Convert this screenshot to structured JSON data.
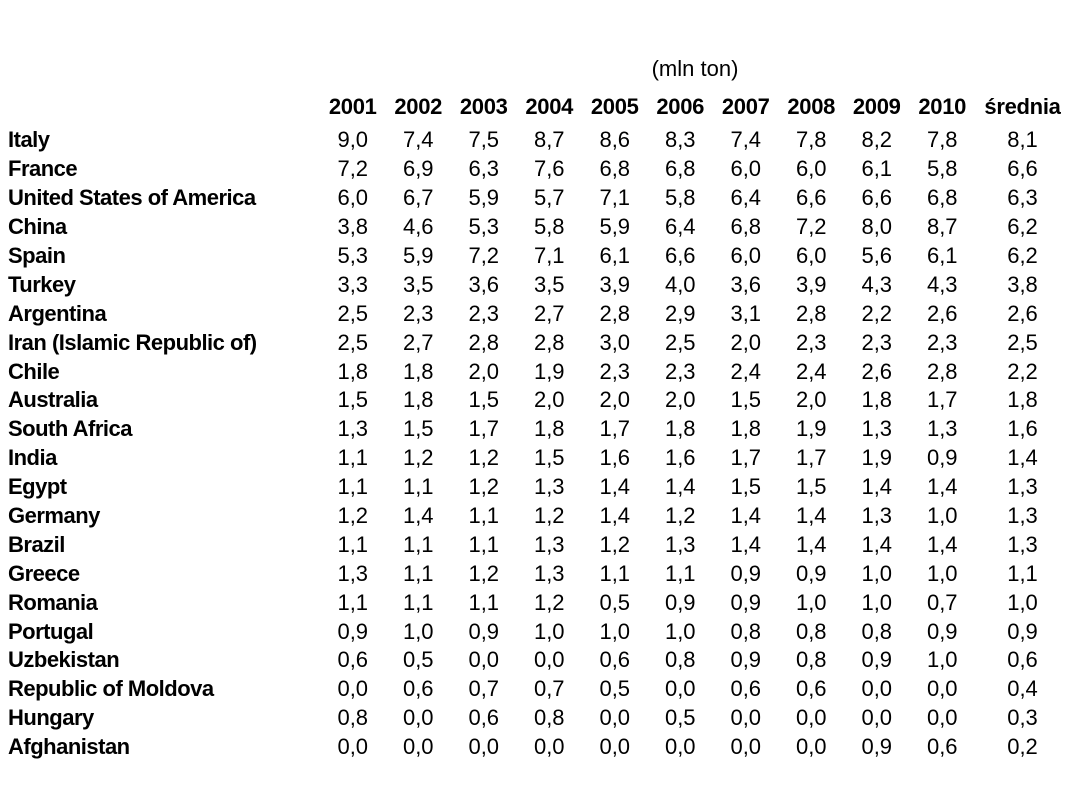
{
  "title": "(mln ton)",
  "chart_data": {
    "type": "table",
    "title": "(mln ton)",
    "unit": "mln ton",
    "decimal_separator": ",",
    "columns": [
      "2001",
      "2002",
      "2003",
      "2004",
      "2005",
      "2006",
      "2007",
      "2008",
      "2009",
      "2010",
      "średnia"
    ],
    "rows": [
      {
        "label": "Italy",
        "values": [
          9.0,
          7.4,
          7.5,
          8.7,
          8.6,
          8.3,
          7.4,
          7.8,
          8.2,
          7.8,
          8.1
        ]
      },
      {
        "label": "France",
        "values": [
          7.2,
          6.9,
          6.3,
          7.6,
          6.8,
          6.8,
          6.0,
          6.0,
          6.1,
          5.8,
          6.6
        ]
      },
      {
        "label": "United States of America",
        "values": [
          6.0,
          6.7,
          5.9,
          5.7,
          7.1,
          5.8,
          6.4,
          6.6,
          6.6,
          6.8,
          6.3
        ]
      },
      {
        "label": "China",
        "values": [
          3.8,
          4.6,
          5.3,
          5.8,
          5.9,
          6.4,
          6.8,
          7.2,
          8.0,
          8.7,
          6.2
        ]
      },
      {
        "label": "Spain",
        "values": [
          5.3,
          5.9,
          7.2,
          7.1,
          6.1,
          6.6,
          6.0,
          6.0,
          5.6,
          6.1,
          6.2
        ]
      },
      {
        "label": "Turkey",
        "values": [
          3.3,
          3.5,
          3.6,
          3.5,
          3.9,
          4.0,
          3.6,
          3.9,
          4.3,
          4.3,
          3.8
        ]
      },
      {
        "label": "Argentina",
        "values": [
          2.5,
          2.3,
          2.3,
          2.7,
          2.8,
          2.9,
          3.1,
          2.8,
          2.2,
          2.6,
          2.6
        ]
      },
      {
        "label": "Iran (Islamic Republic of)",
        "values": [
          2.5,
          2.7,
          2.8,
          2.8,
          3.0,
          2.5,
          2.0,
          2.3,
          2.3,
          2.3,
          2.5
        ]
      },
      {
        "label": "Chile",
        "values": [
          1.8,
          1.8,
          2.0,
          1.9,
          2.3,
          2.3,
          2.4,
          2.4,
          2.6,
          2.8,
          2.2
        ]
      },
      {
        "label": "Australia",
        "values": [
          1.5,
          1.8,
          1.5,
          2.0,
          2.0,
          2.0,
          1.5,
          2.0,
          1.8,
          1.7,
          1.8
        ]
      },
      {
        "label": "South Africa",
        "values": [
          1.3,
          1.5,
          1.7,
          1.8,
          1.7,
          1.8,
          1.8,
          1.9,
          1.3,
          1.3,
          1.6
        ]
      },
      {
        "label": "India",
        "values": [
          1.1,
          1.2,
          1.2,
          1.5,
          1.6,
          1.6,
          1.7,
          1.7,
          1.9,
          0.9,
          1.4
        ]
      },
      {
        "label": "Egypt",
        "values": [
          1.1,
          1.1,
          1.2,
          1.3,
          1.4,
          1.4,
          1.5,
          1.5,
          1.4,
          1.4,
          1.3
        ]
      },
      {
        "label": "Germany",
        "values": [
          1.2,
          1.4,
          1.1,
          1.2,
          1.4,
          1.2,
          1.4,
          1.4,
          1.3,
          1.0,
          1.3
        ]
      },
      {
        "label": "Brazil",
        "values": [
          1.1,
          1.1,
          1.1,
          1.3,
          1.2,
          1.3,
          1.4,
          1.4,
          1.4,
          1.4,
          1.3
        ]
      },
      {
        "label": "Greece",
        "values": [
          1.3,
          1.1,
          1.2,
          1.3,
          1.1,
          1.1,
          0.9,
          0.9,
          1.0,
          1.0,
          1.1
        ]
      },
      {
        "label": "Romania",
        "values": [
          1.1,
          1.1,
          1.1,
          1.2,
          0.5,
          0.9,
          0.9,
          1.0,
          1.0,
          0.7,
          1.0
        ]
      },
      {
        "label": "Portugal",
        "values": [
          0.9,
          1.0,
          0.9,
          1.0,
          1.0,
          1.0,
          0.8,
          0.8,
          0.8,
          0.9,
          0.9
        ]
      },
      {
        "label": "Uzbekistan",
        "values": [
          0.6,
          0.5,
          0.0,
          0.0,
          0.6,
          0.8,
          0.9,
          0.8,
          0.9,
          1.0,
          0.6
        ]
      },
      {
        "label": "Republic of Moldova",
        "values": [
          0.0,
          0.6,
          0.7,
          0.7,
          0.5,
          0.0,
          0.6,
          0.6,
          0.0,
          0.0,
          0.4
        ]
      },
      {
        "label": "Hungary",
        "values": [
          0.8,
          0.0,
          0.6,
          0.8,
          0.0,
          0.5,
          0.0,
          0.0,
          0.0,
          0.0,
          0.3
        ]
      },
      {
        "label": "Afghanistan",
        "values": [
          0.0,
          0.0,
          0.0,
          0.0,
          0.0,
          0.0,
          0.0,
          0.0,
          0.9,
          0.6,
          0.2
        ]
      }
    ]
  }
}
